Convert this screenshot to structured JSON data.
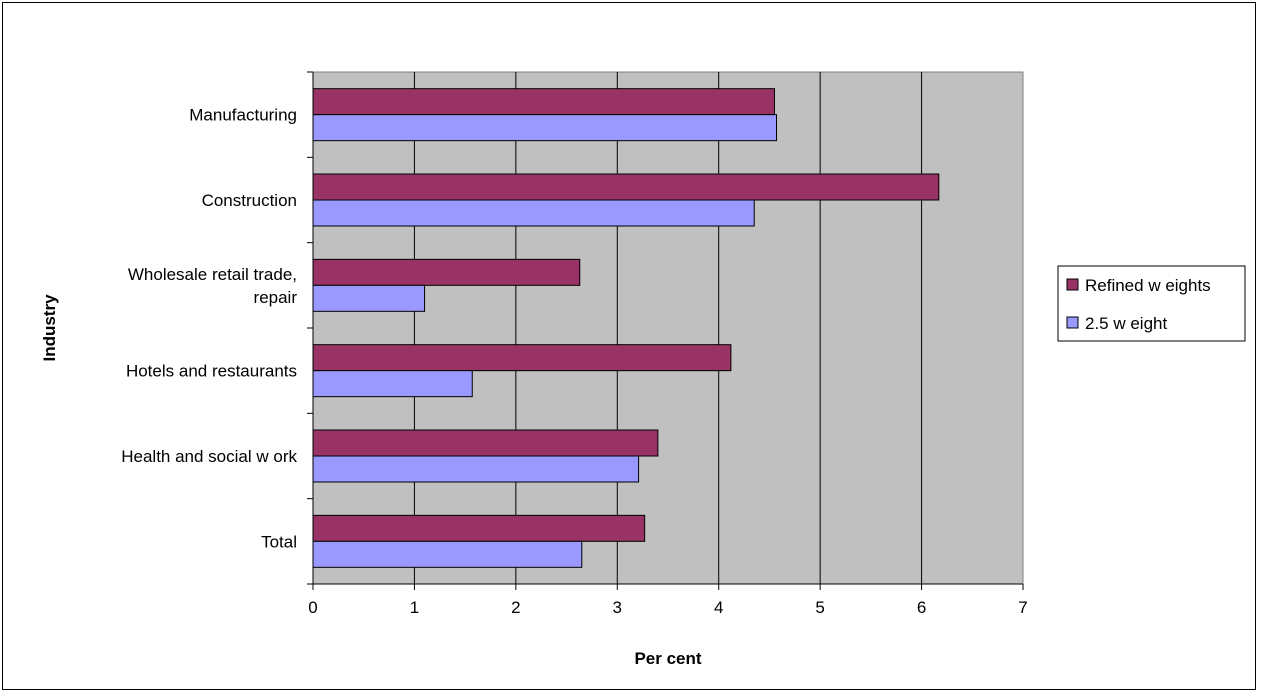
{
  "chart_data": {
    "type": "bar",
    "orientation": "horizontal",
    "categories": [
      "Manufacturing",
      "Construction",
      "Wholesale retail trade, repair",
      "Hotels and restaurants",
      "Health and social w ork",
      "Total"
    ],
    "category_lines": [
      [
        "Manufacturing"
      ],
      [
        "Construction"
      ],
      [
        "Wholesale retail trade,",
        "repair"
      ],
      [
        "Hotels and restaurants"
      ],
      [
        "Health and social w ork"
      ],
      [
        "Total"
      ]
    ],
    "series": [
      {
        "name": "Refined w eights",
        "color": "#993366",
        "values": [
          4.55,
          6.17,
          2.63,
          4.12,
          3.4,
          3.27
        ]
      },
      {
        "name": "2.5 w eight",
        "color": "#9999ff",
        "values": [
          4.57,
          4.35,
          1.1,
          1.57,
          3.21,
          2.65
        ]
      }
    ],
    "title": "",
    "xlabel": "Per cent",
    "ylabel": "Industry",
    "xlim": [
      0,
      7
    ],
    "xticks": [
      0,
      1,
      2,
      3,
      4,
      5,
      6,
      7
    ],
    "grid": true,
    "plot_background": "#c0c0c0",
    "legend_position": "right"
  }
}
